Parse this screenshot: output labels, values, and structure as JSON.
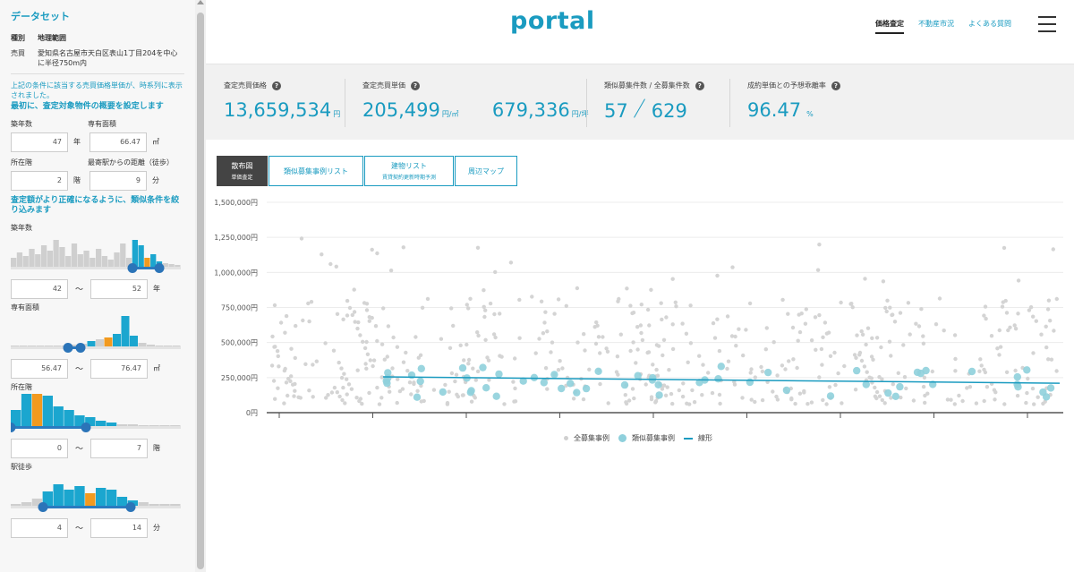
{
  "sidebar": {
    "title": "データセット",
    "type_key": "種別",
    "type_value": "地理範囲",
    "sale_key": "売買",
    "sale_value": "愛知県名古屋市天白区表山1丁目204を中心に半径750m内",
    "note": "上記の条件に該当する売買価格単価が、時系列に表示されました。",
    "section1": "最初に、査定対象物件の概要を設定します",
    "age_label": "築年数",
    "age_value": "47",
    "age_unit": "年",
    "area_label": "専有面積",
    "area_value": "66.47",
    "area_unit": "㎡",
    "floor_label": "所在階",
    "floor_value": "2",
    "floor_unit": "階",
    "walk_label": "最寄駅からの距離（徒歩）",
    "walk_value": "9",
    "walk_unit": "分",
    "section2": "査定額がより正確になるように、類似条件を絞り込みます",
    "filters": [
      {
        "label": "築年数",
        "min": "42",
        "max": "52",
        "unit": "年",
        "tilde": "〜"
      },
      {
        "label": "専有面積",
        "min": "56.47",
        "max": "76.47",
        "unit": "㎡",
        "tilde": "〜"
      },
      {
        "label": "所在階",
        "min": "0",
        "max": "7",
        "unit": "階",
        "tilde": "〜"
      },
      {
        "label": "駅徒歩",
        "min": "4",
        "max": "14",
        "unit": "分",
        "tilde": "〜"
      }
    ]
  },
  "header": {
    "logo": "portal",
    "nav": [
      "価格査定",
      "不動産市況",
      "よくある質問"
    ]
  },
  "stats": {
    "price_label": "査定売買価格",
    "price_value": "13,659,534",
    "price_unit": "円",
    "unit_label": "査定売買単価",
    "unit_value_m2": "205,499",
    "unit_m2": "円/㎡",
    "unit_value_tsubo": "679,336",
    "unit_tsubo": "円/坪",
    "count_label": "類似募集件数 / 全募集件数",
    "count_similar": "57",
    "count_total": "629",
    "rate_label": "成約単価との予想乖離率",
    "rate_value": "96.47",
    "rate_unit": "%"
  },
  "tabs": [
    {
      "label": "散布図",
      "sub": "単価査定"
    },
    {
      "label": "類似募集事例リスト",
      "sub": ""
    },
    {
      "label": "建物リスト",
      "sub": "賃貸契約更新時期予測"
    },
    {
      "label": "周辺マップ",
      "sub": ""
    }
  ],
  "colors": {
    "accent": "#1a9bc0",
    "light_dot": "#d0d0d0",
    "similar_dot": "#8fd0dc"
  },
  "chart_data": {
    "type": "scatter",
    "y_ticks": [
      "1,500,000円",
      "1,250,000円",
      "1,000,000円",
      "750,000円",
      "500,000円",
      "250,000円",
      "0円"
    ],
    "ylim": [
      0,
      1500000
    ],
    "series": [
      {
        "name": "全募集事例"
      },
      {
        "name": "類似募集事例"
      },
      {
        "name": "線形"
      }
    ],
    "trend": {
      "start": 255000,
      "end": 210000
    }
  }
}
